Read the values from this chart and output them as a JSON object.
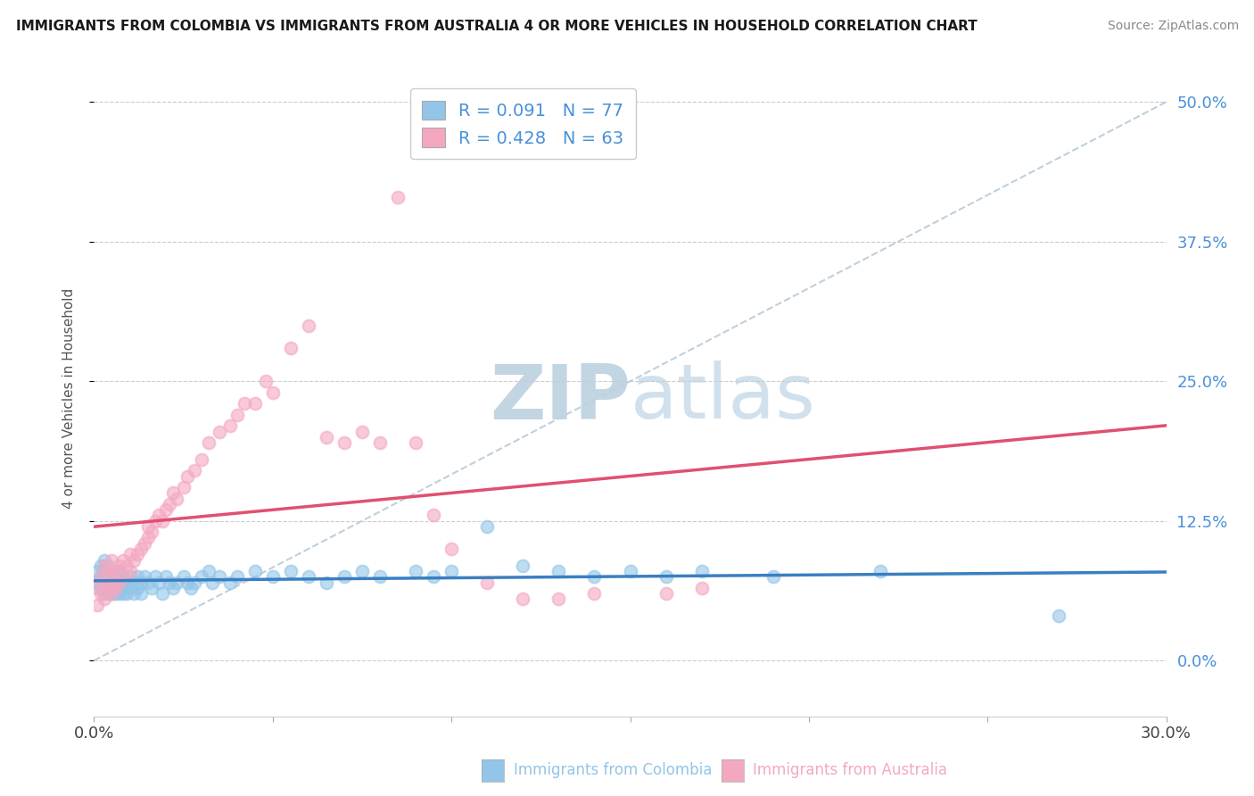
{
  "title": "IMMIGRANTS FROM COLOMBIA VS IMMIGRANTS FROM AUSTRALIA 4 OR MORE VEHICLES IN HOUSEHOLD CORRELATION CHART",
  "source": "Source: ZipAtlas.com",
  "ylabel": "4 or more Vehicles in Household",
  "xlabel_colombia": "Immigrants from Colombia",
  "xlabel_australia": "Immigrants from Australia",
  "xmin": 0.0,
  "xmax": 0.3,
  "ymin": -0.05,
  "ymax": 0.52,
  "yticks": [
    0.0,
    0.125,
    0.25,
    0.375,
    0.5
  ],
  "ytick_labels_right": [
    "0.0%",
    "12.5%",
    "25.0%",
    "37.5%",
    "50.0%"
  ],
  "xtick_vals": [
    0.0,
    0.3
  ],
  "xtick_labels": [
    "0.0%",
    "30.0%"
  ],
  "R_colombia": 0.091,
  "N_colombia": 77,
  "R_australia": 0.428,
  "N_australia": 63,
  "colombia_scatter_color": "#92c5e8",
  "australia_scatter_color": "#f4a8c0",
  "colombia_line_color": "#3a7fc1",
  "australia_line_color": "#e05070",
  "right_axis_color": "#4a90d9",
  "grid_color": "#cccccc",
  "watermark_color": "#c5d8ea",
  "ref_line_color": "#c0d0dc",
  "title_color": "#1a1a1a",
  "source_color": "#888888",
  "colombia_scatter_x": [
    0.001,
    0.001,
    0.002,
    0.002,
    0.002,
    0.003,
    0.003,
    0.003,
    0.003,
    0.004,
    0.004,
    0.004,
    0.004,
    0.005,
    0.005,
    0.005,
    0.005,
    0.006,
    0.006,
    0.006,
    0.007,
    0.007,
    0.007,
    0.008,
    0.008,
    0.008,
    0.009,
    0.009,
    0.01,
    0.01,
    0.011,
    0.011,
    0.012,
    0.012,
    0.013,
    0.013,
    0.014,
    0.015,
    0.016,
    0.017,
    0.018,
    0.019,
    0.02,
    0.021,
    0.022,
    0.023,
    0.025,
    0.026,
    0.027,
    0.028,
    0.03,
    0.032,
    0.033,
    0.035,
    0.038,
    0.04,
    0.045,
    0.05,
    0.055,
    0.06,
    0.065,
    0.07,
    0.075,
    0.08,
    0.09,
    0.095,
    0.1,
    0.11,
    0.12,
    0.13,
    0.14,
    0.15,
    0.16,
    0.17,
    0.19,
    0.22,
    0.27
  ],
  "colombia_scatter_y": [
    0.07,
    0.08,
    0.065,
    0.075,
    0.085,
    0.06,
    0.07,
    0.08,
    0.09,
    0.065,
    0.075,
    0.085,
    0.06,
    0.07,
    0.08,
    0.06,
    0.075,
    0.065,
    0.075,
    0.06,
    0.07,
    0.06,
    0.08,
    0.065,
    0.075,
    0.06,
    0.07,
    0.06,
    0.075,
    0.065,
    0.07,
    0.06,
    0.075,
    0.065,
    0.07,
    0.06,
    0.075,
    0.07,
    0.065,
    0.075,
    0.07,
    0.06,
    0.075,
    0.07,
    0.065,
    0.07,
    0.075,
    0.07,
    0.065,
    0.07,
    0.075,
    0.08,
    0.07,
    0.075,
    0.07,
    0.075,
    0.08,
    0.075,
    0.08,
    0.075,
    0.07,
    0.075,
    0.08,
    0.075,
    0.08,
    0.075,
    0.08,
    0.12,
    0.085,
    0.08,
    0.075,
    0.08,
    0.075,
    0.08,
    0.075,
    0.08,
    0.04
  ],
  "australia_scatter_x": [
    0.001,
    0.001,
    0.002,
    0.002,
    0.003,
    0.003,
    0.003,
    0.004,
    0.004,
    0.005,
    0.005,
    0.005,
    0.006,
    0.006,
    0.007,
    0.007,
    0.008,
    0.008,
    0.009,
    0.01,
    0.01,
    0.011,
    0.012,
    0.013,
    0.014,
    0.015,
    0.015,
    0.016,
    0.017,
    0.018,
    0.019,
    0.02,
    0.021,
    0.022,
    0.023,
    0.025,
    0.026,
    0.028,
    0.03,
    0.032,
    0.035,
    0.038,
    0.04,
    0.042,
    0.045,
    0.048,
    0.05,
    0.055,
    0.06,
    0.065,
    0.07,
    0.075,
    0.08,
    0.085,
    0.09,
    0.095,
    0.1,
    0.11,
    0.12,
    0.13,
    0.14,
    0.16,
    0.17
  ],
  "australia_scatter_y": [
    0.05,
    0.065,
    0.06,
    0.075,
    0.055,
    0.07,
    0.085,
    0.065,
    0.08,
    0.06,
    0.075,
    0.09,
    0.065,
    0.08,
    0.07,
    0.085,
    0.075,
    0.09,
    0.085,
    0.08,
    0.095,
    0.09,
    0.095,
    0.1,
    0.105,
    0.11,
    0.12,
    0.115,
    0.125,
    0.13,
    0.125,
    0.135,
    0.14,
    0.15,
    0.145,
    0.155,
    0.165,
    0.17,
    0.18,
    0.195,
    0.205,
    0.21,
    0.22,
    0.23,
    0.23,
    0.25,
    0.24,
    0.28,
    0.3,
    0.2,
    0.195,
    0.205,
    0.195,
    0.415,
    0.195,
    0.13,
    0.1,
    0.07,
    0.055,
    0.055,
    0.06,
    0.06,
    0.065
  ]
}
